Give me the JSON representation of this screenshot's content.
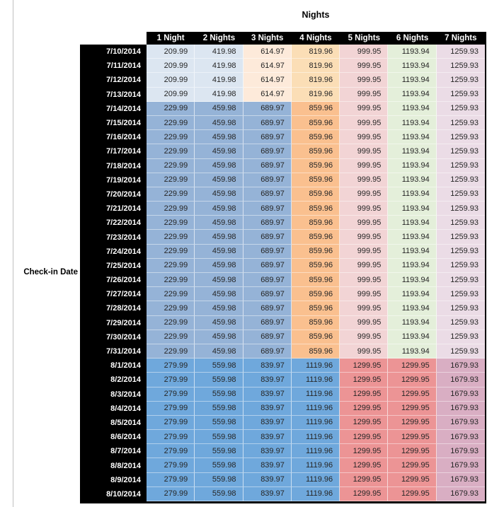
{
  "chart_data": {
    "type": "table",
    "title": "Nights",
    "row_axis_label": "Check-in Date",
    "columns": [
      "1 Night",
      "2 Nights",
      "3 Nights",
      "4 Nights",
      "5 Nights",
      "6 Nights",
      "7 Nights"
    ],
    "section_fills": {
      "jul10_13": [
        "#dce6f1",
        "#dce6f1",
        "#fdeada",
        "#fbdeb6",
        "#f2d4d5",
        "#e4efda",
        "#ebdce6"
      ],
      "jul14_31": [
        "#95b3d7",
        "#95b3d7",
        "#95b3d7",
        "#fac08f",
        "#f2d4d5",
        "#e4efda",
        "#ebdce6"
      ],
      "aug1_10": [
        "#6fa8dc",
        "#6fa8dc",
        "#6fa8dc",
        "#6fa8dc",
        "#ec9495",
        "#ec9495",
        "#d9aec3"
      ]
    },
    "rows": [
      {
        "date": "7/10/2014",
        "section": "jul10_13",
        "values": [
          "209.99",
          "419.98",
          "614.97",
          "819.96",
          "999.95",
          "1193.94",
          "1259.93"
        ]
      },
      {
        "date": "7/11/2014",
        "section": "jul10_13",
        "values": [
          "209.99",
          "419.98",
          "614.97",
          "819.96",
          "999.95",
          "1193.94",
          "1259.93"
        ]
      },
      {
        "date": "7/12/2014",
        "section": "jul10_13",
        "values": [
          "209.99",
          "419.98",
          "614.97",
          "819.96",
          "999.95",
          "1193.94",
          "1259.93"
        ]
      },
      {
        "date": "7/13/2014",
        "section": "jul10_13",
        "values": [
          "209.99",
          "419.98",
          "614.97",
          "819.96",
          "999.95",
          "1193.94",
          "1259.93"
        ]
      },
      {
        "date": "7/14/2014",
        "section": "jul14_31",
        "values": [
          "229.99",
          "459.98",
          "689.97",
          "859.96",
          "999.95",
          "1193.94",
          "1259.93"
        ]
      },
      {
        "date": "7/15/2014",
        "section": "jul14_31",
        "values": [
          "229.99",
          "459.98",
          "689.97",
          "859.96",
          "999.95",
          "1193.94",
          "1259.93"
        ]
      },
      {
        "date": "7/16/2014",
        "section": "jul14_31",
        "values": [
          "229.99",
          "459.98",
          "689.97",
          "859.96",
          "999.95",
          "1193.94",
          "1259.93"
        ]
      },
      {
        "date": "7/17/2014",
        "section": "jul14_31",
        "values": [
          "229.99",
          "459.98",
          "689.97",
          "859.96",
          "999.95",
          "1193.94",
          "1259.93"
        ]
      },
      {
        "date": "7/18/2014",
        "section": "jul14_31",
        "values": [
          "229.99",
          "459.98",
          "689.97",
          "859.96",
          "999.95",
          "1193.94",
          "1259.93"
        ]
      },
      {
        "date": "7/19/2014",
        "section": "jul14_31",
        "values": [
          "229.99",
          "459.98",
          "689.97",
          "859.96",
          "999.95",
          "1193.94",
          "1259.93"
        ]
      },
      {
        "date": "7/20/2014",
        "section": "jul14_31",
        "values": [
          "229.99",
          "459.98",
          "689.97",
          "859.96",
          "999.95",
          "1193.94",
          "1259.93"
        ]
      },
      {
        "date": "7/21/2014",
        "section": "jul14_31",
        "values": [
          "229.99",
          "459.98",
          "689.97",
          "859.96",
          "999.95",
          "1193.94",
          "1259.93"
        ]
      },
      {
        "date": "7/22/2014",
        "section": "jul14_31",
        "values": [
          "229.99",
          "459.98",
          "689.97",
          "859.96",
          "999.95",
          "1193.94",
          "1259.93"
        ]
      },
      {
        "date": "7/23/2014",
        "section": "jul14_31",
        "values": [
          "229.99",
          "459.98",
          "689.97",
          "859.96",
          "999.95",
          "1193.94",
          "1259.93"
        ]
      },
      {
        "date": "7/24/2014",
        "section": "jul14_31",
        "values": [
          "229.99",
          "459.98",
          "689.97",
          "859.96",
          "999.95",
          "1193.94",
          "1259.93"
        ]
      },
      {
        "date": "7/25/2014",
        "section": "jul14_31",
        "values": [
          "229.99",
          "459.98",
          "689.97",
          "859.96",
          "999.95",
          "1193.94",
          "1259.93"
        ]
      },
      {
        "date": "7/26/2014",
        "section": "jul14_31",
        "values": [
          "229.99",
          "459.98",
          "689.97",
          "859.96",
          "999.95",
          "1193.94",
          "1259.93"
        ]
      },
      {
        "date": "7/27/2014",
        "section": "jul14_31",
        "values": [
          "229.99",
          "459.98",
          "689.97",
          "859.96",
          "999.95",
          "1193.94",
          "1259.93"
        ]
      },
      {
        "date": "7/28/2014",
        "section": "jul14_31",
        "values": [
          "229.99",
          "459.98",
          "689.97",
          "859.96",
          "999.95",
          "1193.94",
          "1259.93"
        ]
      },
      {
        "date": "7/29/2014",
        "section": "jul14_31",
        "values": [
          "229.99",
          "459.98",
          "689.97",
          "859.96",
          "999.95",
          "1193.94",
          "1259.93"
        ]
      },
      {
        "date": "7/30/2014",
        "section": "jul14_31",
        "values": [
          "229.99",
          "459.98",
          "689.97",
          "859.96",
          "999.95",
          "1193.94",
          "1259.93"
        ]
      },
      {
        "date": "7/31/2014",
        "section": "jul14_31",
        "values": [
          "229.99",
          "459.98",
          "689.97",
          "859.96",
          "999.95",
          "1193.94",
          "1259.93"
        ]
      },
      {
        "date": "8/1/2014",
        "section": "aug1_10",
        "values": [
          "279.99",
          "559.98",
          "839.97",
          "1119.96",
          "1299.95",
          "1299.95",
          "1679.93"
        ]
      },
      {
        "date": "8/2/2014",
        "section": "aug1_10",
        "values": [
          "279.99",
          "559.98",
          "839.97",
          "1119.96",
          "1299.95",
          "1299.95",
          "1679.93"
        ]
      },
      {
        "date": "8/3/2014",
        "section": "aug1_10",
        "values": [
          "279.99",
          "559.98",
          "839.97",
          "1119.96",
          "1299.95",
          "1299.95",
          "1679.93"
        ]
      },
      {
        "date": "8/4/2014",
        "section": "aug1_10",
        "values": [
          "279.99",
          "559.98",
          "839.97",
          "1119.96",
          "1299.95",
          "1299.95",
          "1679.93"
        ]
      },
      {
        "date": "8/5/2014",
        "section": "aug1_10",
        "values": [
          "279.99",
          "559.98",
          "839.97",
          "1119.96",
          "1299.95",
          "1299.95",
          "1679.93"
        ]
      },
      {
        "date": "8/6/2014",
        "section": "aug1_10",
        "values": [
          "279.99",
          "559.98",
          "839.97",
          "1119.96",
          "1299.95",
          "1299.95",
          "1679.93"
        ]
      },
      {
        "date": "8/7/2014",
        "section": "aug1_10",
        "values": [
          "279.99",
          "559.98",
          "839.97",
          "1119.96",
          "1299.95",
          "1299.95",
          "1679.93"
        ]
      },
      {
        "date": "8/8/2014",
        "section": "aug1_10",
        "values": [
          "279.99",
          "559.98",
          "839.97",
          "1119.96",
          "1299.95",
          "1299.95",
          "1679.93"
        ]
      },
      {
        "date": "8/9/2014",
        "section": "aug1_10",
        "values": [
          "279.99",
          "559.98",
          "839.97",
          "1119.96",
          "1299.95",
          "1299.95",
          "1679.93"
        ]
      },
      {
        "date": "8/10/2014",
        "section": "aug1_10",
        "values": [
          "279.99",
          "559.98",
          "839.97",
          "1119.96",
          "1299.95",
          "1299.95",
          "1679.93"
        ]
      }
    ]
  },
  "colors": {
    "header_bg": "#000000",
    "header_text": "#ffffff",
    "value_text": "#262626",
    "gridline": "#bfbfbf"
  }
}
